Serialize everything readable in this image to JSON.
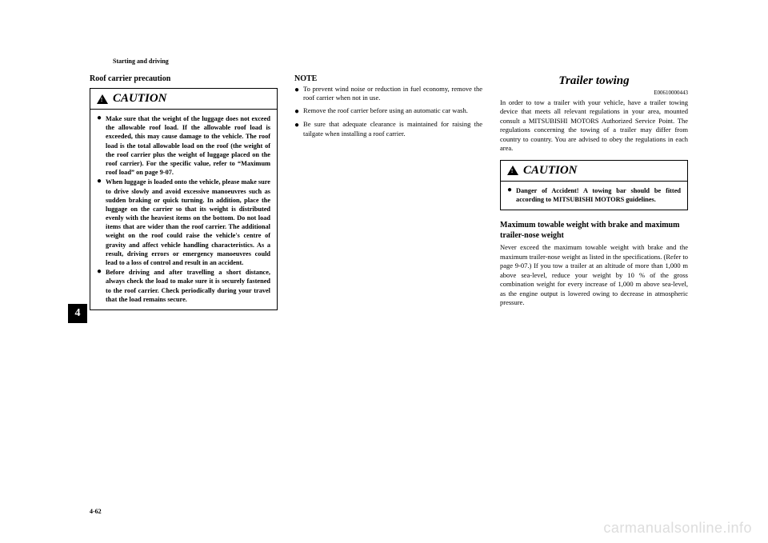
{
  "header": {
    "section": "Starting and driving"
  },
  "col1": {
    "title": "Roof carrier precaution",
    "caution_label": "CAUTION",
    "items": [
      "Make sure that the weight of the luggage does not exceed the allowable roof load. If the allowable roof load is exceeded, this may cause damage to the vehicle. The roof load is the total allowable load on the roof (the weight of the roof carrier plus the weight of luggage placed on the roof carrier). For the specific value, refer to “Maximum roof load” on page 9-07.",
      "When luggage is loaded onto the vehicle, please make sure to drive slowly and avoid excessive manoeuvres such as sudden braking or quick turning. In addition, place the luggage on the carrier so that its weight is distributed evenly with the heaviest items on the bottom. Do not load items that are wider than the roof carrier. The additional weight on the roof could raise the vehicle's centre of gravity and affect vehicle handling characteristics. As a result, driving errors or emergency manoeuvres could lead to a loss of control and result in an accident.",
      "Before driving and after travelling a short distance, always check the load to make sure it is securely fastened to the roof carrier. Check periodically during your travel that the load remains secure."
    ]
  },
  "col2": {
    "note_label": "NOTE",
    "items": [
      "To prevent wind noise or reduction in fuel economy, remove the roof carrier when not in use.",
      "Remove the roof carrier before using an automatic car wash.",
      "Be sure that adequate clearance is maintained for raising the tailgate when installing a roof carrier."
    ]
  },
  "col3": {
    "title": "Trailer towing",
    "ecode": "E00610000443",
    "p1": "In order to tow a trailer with your vehicle, have a trailer towing device that meets all relevant regulations in your area, mounted consult a MITSUBISHI MOTORS Authorized Service Point. The regulations concerning the towing of a trailer may differ from country to country. You are advised to obey the regulations in each area.",
    "caution_label": "CAUTION",
    "caution_item": "Danger of Accident! A towing bar should be fitted according to MITSUBISHI MOTORS guidelines.",
    "sub_head": "Maximum towable weight with brake and maximum trailer-nose weight",
    "p2": "Never exceed the maximum towable weight with brake and the maximum trailer-nose weight as listed in the specifications. (Refer to page 9-07.) If you tow a trailer at an altitude of more than 1,000 m above sea-level, reduce your weight by 10 % of the gross combination weight for every increase of 1,000 m above sea-level, as the engine output is lowered owing to decrease in atmospheric pressure."
  },
  "sidetab": "4",
  "pgnum": "4-62",
  "watermark": "carmanualsonline.info"
}
